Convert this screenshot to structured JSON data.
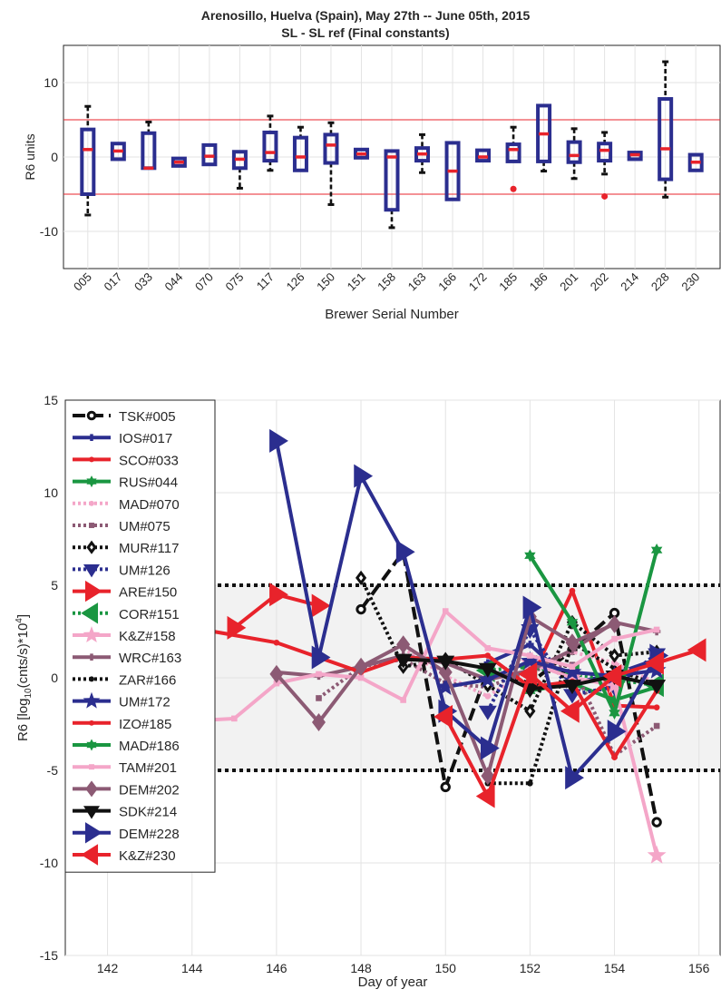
{
  "figure": {
    "title_line1": "Arenosillo, Huelva (Spain), May 27th -- June 05th, 2015",
    "title_line2": "SL - SL ref (Final constants)"
  },
  "chart_data": [
    {
      "type": "box",
      "ylabel": "R6 units",
      "xlabel": "Brewer Serial Number",
      "ylim": [
        -15,
        15
      ],
      "yticks": [
        "10",
        "0",
        "-10"
      ],
      "ytick_values": [
        10,
        0,
        -10
      ],
      "reference_lines": [
        5,
        -5
      ],
      "grid": true,
      "colors": {
        "box": "#2b2e8f",
        "median": "#e8232b",
        "whisker": "#111111",
        "outlier": "#e8232b",
        "ref": "#e8232b"
      },
      "categories": [
        "005",
        "017",
        "033",
        "044",
        "070",
        "075",
        "117",
        "126",
        "150",
        "151",
        "158",
        "163",
        "166",
        "172",
        "185",
        "186",
        "201",
        "202",
        "214",
        "228",
        "230"
      ],
      "boxes": [
        {
          "q1": -5,
          "q3": 3.7,
          "med": 1,
          "wlo": -7.8,
          "whi": 6.8
        },
        {
          "q1": -0.3,
          "q3": 1.8,
          "med": 0.8,
          "wlo": -0.3,
          "whi": 1.8
        },
        {
          "q1": -1.5,
          "q3": 3.2,
          "med": -1.5,
          "wlo": -1.5,
          "whi": 4.7
        },
        {
          "q1": -1.2,
          "q3": -0.2,
          "med": -0.7,
          "wlo": -1.2,
          "whi": -0.2
        },
        {
          "q1": -1,
          "q3": 1.6,
          "med": 0.1,
          "wlo": -1,
          "whi": 1.6
        },
        {
          "q1": -1.5,
          "q3": 0.7,
          "med": -0.3,
          "wlo": -4.2,
          "whi": 0.7
        },
        {
          "q1": -0.5,
          "q3": 3.3,
          "med": 0.6,
          "wlo": -1.8,
          "whi": 5.5
        },
        {
          "q1": -1.8,
          "q3": 2.6,
          "med": 0,
          "wlo": -1.8,
          "whi": 4
        },
        {
          "q1": -0.8,
          "q3": 3,
          "med": 1.6,
          "wlo": -6.4,
          "whi": 4.6
        },
        {
          "q1": -0.1,
          "q3": 1,
          "med": 0.4,
          "wlo": -0.1,
          "whi": 1
        },
        {
          "q1": -7.1,
          "q3": 0.8,
          "med": 0,
          "wlo": -9.5,
          "whi": 0.8
        },
        {
          "q1": -0.5,
          "q3": 1.2,
          "med": 0.4,
          "wlo": -2.1,
          "whi": 3
        },
        {
          "q1": -5.7,
          "q3": 1.9,
          "med": -1.9,
          "wlo": -5.7,
          "whi": 1.9
        },
        {
          "q1": -0.5,
          "q3": 0.9,
          "med": 0,
          "wlo": -0.5,
          "whi": 0.9
        },
        {
          "q1": -0.6,
          "q3": 1.7,
          "med": 1,
          "wlo": -0.6,
          "whi": 4
        },
        {
          "q1": -0.6,
          "q3": 6.9,
          "med": 3.1,
          "wlo": -1.9,
          "whi": 6.9
        },
        {
          "q1": -0.7,
          "q3": 2,
          "med": 0.2,
          "wlo": -2.9,
          "whi": 3.8
        },
        {
          "q1": -0.5,
          "q3": 1.8,
          "med": 0.9,
          "wlo": -2.3,
          "whi": 3.3
        },
        {
          "q1": -0.3,
          "q3": 0.6,
          "med": 0.3,
          "wlo": -0.3,
          "whi": 0.6
        },
        {
          "q1": -3,
          "q3": 7.8,
          "med": 1.1,
          "wlo": -5.4,
          "whi": 12.8
        },
        {
          "q1": -1.8,
          "q3": 0.3,
          "med": -0.7,
          "wlo": -1.8,
          "whi": 0.3
        }
      ],
      "outliers": [
        {
          "cat": "185",
          "y": -4.3
        },
        {
          "cat": "202",
          "y": -5.3
        }
      ]
    },
    {
      "type": "line",
      "xlabel": "Day of year",
      "ylabel": "R6 [log",
      "ylabel_sub": "10",
      "ylabel_mid": "(cnts/s)*10",
      "ylabel_sup": "4",
      "ylabel_end": "]",
      "xlim": [
        141,
        156.5
      ],
      "ylim": [
        -15,
        15
      ],
      "xticks": [
        "142",
        "144",
        "146",
        "148",
        "150",
        "152",
        "154",
        "156"
      ],
      "xtick_values": [
        142,
        144,
        146,
        148,
        150,
        152,
        154,
        156
      ],
      "yticks": [
        "15",
        "10",
        "5",
        "0",
        "-5",
        "-10",
        "-15"
      ],
      "ytick_values": [
        15,
        10,
        5,
        0,
        -5,
        -10,
        -15
      ],
      "band": [
        -5,
        5
      ],
      "grid": true,
      "legend_placement": "left",
      "series": [
        {
          "name": "TSK#005",
          "color": "#111111",
          "dash": "14,6",
          "marker": "circle-open",
          "x": [
            148,
            149,
            150,
            151,
            152,
            153,
            154,
            155
          ],
          "y": [
            3.7,
            6.8,
            -5.9,
            0.4,
            -0.3,
            1.5,
            3.5,
            -7.8
          ]
        },
        {
          "name": "IOS#017",
          "color": "#2b2e8f",
          "dash": "",
          "marker": "plus",
          "x": [
            151,
            152,
            153,
            154,
            155
          ],
          "y": [
            0.8,
            1.8,
            -0.3,
            0.2,
            1
          ]
        },
        {
          "name": "SCO#033",
          "color": "#e8232b",
          "dash": "",
          "marker": "circle",
          "x": [
            152,
            153,
            154,
            155
          ],
          "y": [
            -0.2,
            4.7,
            -1.5,
            -1.6
          ]
        },
        {
          "name": "RUS#044",
          "color": "#1a9641",
          "dash": "",
          "marker": "hexagram",
          "x": [
            152,
            153,
            154,
            155
          ],
          "y": [
            -0.7,
            -0.3,
            -1.2,
            -0.5
          ]
        },
        {
          "name": "MAD#070",
          "color": "#f4a6c8",
          "dash": "3,3",
          "marker": "circle",
          "x": [
            149,
            150,
            151,
            152,
            153,
            154,
            155
          ],
          "y": [
            1.6,
            0.1,
            -1,
            0.5,
            1.4,
            0.8,
            -0.3
          ]
        },
        {
          "name": "UM#075",
          "color": "#8c5a74",
          "dash": "3,3",
          "marker": "square",
          "x": [
            147,
            148,
            149,
            150,
            151,
            152,
            153,
            154,
            155
          ],
          "y": [
            -1.1,
            0.6,
            1,
            -0.3,
            -0.5,
            0.4,
            0.7,
            -4.2,
            -2.6
          ]
        },
        {
          "name": "MUR#117",
          "color": "#111111",
          "dash": "3,3",
          "marker": "diamond-open",
          "x": [
            148,
            149,
            150,
            151,
            152,
            153,
            154,
            155
          ],
          "y": [
            5.4,
            0.6,
            1,
            -0.4,
            -1.8,
            3,
            1.2,
            1.4
          ]
        },
        {
          "name": "UM#126",
          "color": "#2b2e8f",
          "dash": "3,3",
          "marker": "triangle-down",
          "x": [
            151,
            152,
            153,
            154,
            155
          ],
          "y": [
            -1.8,
            2.6,
            -0.9,
            -0.5,
            1.3
          ]
        },
        {
          "name": "ARE#150",
          "color": "#e8232b",
          "dash": "",
          "marker": "triangle-right",
          "x": [
            145,
            146,
            147
          ],
          "y": [
            2.7,
            4.5,
            3.9
          ]
        },
        {
          "name": "COR#151",
          "color": "#1a9641",
          "dash": "3,3",
          "marker": "triangle-left",
          "x": [
            151,
            152,
            153,
            154,
            155
          ],
          "y": [
            0.4,
            0.6,
            0.2,
            -0.1,
            -0.4
          ]
        },
        {
          "name": "K&Z#158",
          "color": "#f4a6c8",
          "dash": "",
          "marker": "pentagram",
          "x": [
            152,
            153,
            154,
            155
          ],
          "y": [
            0.8,
            0,
            -0.4,
            -9.6
          ]
        },
        {
          "name": "WRC#163",
          "color": "#8c5a74",
          "dash": "",
          "marker": "plus",
          "x": [
            146,
            147,
            148,
            149,
            150,
            151,
            152,
            153,
            154,
            155
          ],
          "y": [
            0.3,
            0.1,
            0.6,
            1.2,
            0.8,
            -0.1,
            0.4,
            1.5,
            3,
            2.5
          ]
        },
        {
          "name": "ZAR#166",
          "color": "#111111",
          "dash": "3,3",
          "marker": "circle",
          "x": [
            151,
            152,
            153,
            154,
            155
          ],
          "y": [
            -5.7,
            -5.7,
            1.9,
            0.5,
            -0.4
          ]
        },
        {
          "name": "UM#172",
          "color": "#2b2e8f",
          "dash": "",
          "marker": "pentagram",
          "x": [
            150,
            151,
            152,
            153,
            154,
            155
          ],
          "y": [
            -0.5,
            -0.1,
            0.9,
            0.3,
            0.1,
            0.4
          ]
        },
        {
          "name": "IZO#185",
          "color": "#e8232b",
          "dash": "",
          "marker": "circle",
          "x": [
            141,
            146,
            148,
            149,
            150,
            151,
            152,
            153,
            154,
            155
          ],
          "y": [
            3.9,
            1.9,
            0.3,
            1.1,
            1,
            1.2,
            -0.5,
            -0.2,
            -4.3,
            -0.7
          ]
        },
        {
          "name": "MAD#186",
          "color": "#1a9641",
          "dash": "",
          "marker": "hexagram",
          "x": [
            152,
            153,
            154,
            155
          ],
          "y": [
            6.6,
            3,
            -1.9,
            6.9
          ]
        },
        {
          "name": "TAM#201",
          "color": "#f4a6c8",
          "dash": "",
          "marker": "square",
          "x": [
            141,
            145,
            146,
            147,
            148,
            149,
            150,
            151,
            152,
            153,
            154,
            155
          ],
          "y": [
            -2.7,
            -2.2,
            -0.3,
            0.2,
            0,
            -1.2,
            3.6,
            1.6,
            1.2,
            0.6,
            2.1,
            2.6
          ]
        },
        {
          "name": "DEM#202",
          "color": "#8c5a74",
          "dash": "",
          "marker": "diamond",
          "x": [
            146,
            147,
            148,
            149,
            150,
            151,
            152,
            153,
            154
          ],
          "y": [
            0.2,
            -2.4,
            0.6,
            1.8,
            0.3,
            -5.3,
            3.3,
            1.9,
            2.9
          ]
        },
        {
          "name": "SDK#214",
          "color": "#111111",
          "dash": "",
          "marker": "triangle-down",
          "x": [
            149,
            150,
            151,
            152,
            153,
            154,
            155
          ],
          "y": [
            1,
            0.9,
            0.5,
            -0.6,
            -0.4,
            0.1,
            -0.4
          ]
        },
        {
          "name": "DEM#228",
          "color": "#2b2e8f",
          "dash": "",
          "marker": "triangle-right",
          "x": [
            146,
            147,
            148,
            149,
            150,
            151,
            152,
            153,
            154,
            155
          ],
          "y": [
            12.8,
            1.1,
            10.9,
            6.8,
            -1.8,
            -3.8,
            3.8,
            -5.4,
            -2.9,
            1.2
          ]
        },
        {
          "name": "K&Z#230",
          "color": "#e8232b",
          "dash": "",
          "marker": "triangle-left",
          "x": [
            150,
            151,
            152,
            153,
            154,
            155,
            156
          ],
          "y": [
            -2.1,
            -6.4,
            0.2,
            -1.8,
            0.1,
            0.8,
            1.5
          ]
        }
      ]
    }
  ]
}
